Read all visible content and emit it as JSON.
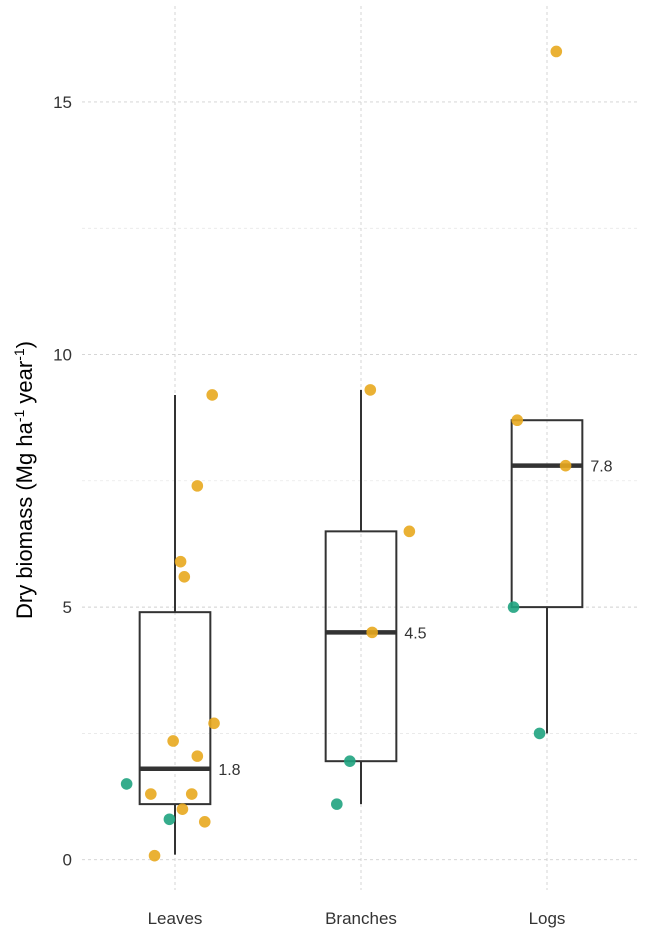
{
  "chart_data": {
    "type": "box",
    "ylabel_parts": [
      "Dry biomass (Mg ha",
      "-1",
      " year",
      "-1",
      ")"
    ],
    "ylim": [
      -0.6,
      16.9
    ],
    "y_ticks": [
      0,
      5,
      10,
      15
    ],
    "y_tick_labels": [
      "0",
      "5",
      "10",
      "15"
    ],
    "y_minor_ticks": [
      2.5,
      7.5,
      12.5
    ],
    "grid": true,
    "categories": [
      "Leaves",
      "Branches",
      "Logs"
    ],
    "colors": {
      "orange": "#E8A81E",
      "green": "#1FA37F",
      "box": "#333333",
      "grid": "#d0d0d0"
    },
    "boxes": [
      {
        "category": "Leaves",
        "whisker_low": 0.1,
        "q1": 1.1,
        "median": 1.8,
        "q3": 4.9,
        "whisker_high": 9.2,
        "median_label": "1.8"
      },
      {
        "category": "Branches",
        "whisker_low": 1.1,
        "q1": 1.95,
        "median": 4.5,
        "q3": 6.5,
        "whisker_high": 9.3,
        "median_label": "4.5"
      },
      {
        "category": "Logs",
        "whisker_low": 2.5,
        "q1": 5.0,
        "median": 7.8,
        "q3": 8.7,
        "whisker_high": 8.7,
        "median_label": "7.8"
      }
    ],
    "points": [
      {
        "category": "Leaves",
        "jitter": 0.2,
        "y": 9.2,
        "color": "orange"
      },
      {
        "category": "Leaves",
        "jitter": 0.12,
        "y": 7.4,
        "color": "orange"
      },
      {
        "category": "Leaves",
        "jitter": 0.03,
        "y": 5.9,
        "color": "orange"
      },
      {
        "category": "Leaves",
        "jitter": 0.05,
        "y": 5.6,
        "color": "orange"
      },
      {
        "category": "Leaves",
        "jitter": 0.21,
        "y": 2.7,
        "color": "orange"
      },
      {
        "category": "Leaves",
        "jitter": -0.01,
        "y": 2.35,
        "color": "orange"
      },
      {
        "category": "Leaves",
        "jitter": 0.12,
        "y": 2.05,
        "color": "orange"
      },
      {
        "category": "Leaves",
        "jitter": -0.26,
        "y": 1.5,
        "color": "green"
      },
      {
        "category": "Leaves",
        "jitter": -0.13,
        "y": 1.3,
        "color": "orange"
      },
      {
        "category": "Leaves",
        "jitter": 0.09,
        "y": 1.3,
        "color": "orange"
      },
      {
        "category": "Leaves",
        "jitter": 0.04,
        "y": 1.0,
        "color": "orange"
      },
      {
        "category": "Leaves",
        "jitter": -0.03,
        "y": 0.8,
        "color": "green"
      },
      {
        "category": "Leaves",
        "jitter": 0.16,
        "y": 0.75,
        "color": "orange"
      },
      {
        "category": "Leaves",
        "jitter": -0.11,
        "y": 0.08,
        "color": "orange"
      },
      {
        "category": "Branches",
        "jitter": 0.05,
        "y": 9.3,
        "color": "orange"
      },
      {
        "category": "Branches",
        "jitter": 0.26,
        "y": 6.5,
        "color": "orange"
      },
      {
        "category": "Branches",
        "jitter": 0.06,
        "y": 4.5,
        "color": "orange"
      },
      {
        "category": "Branches",
        "jitter": -0.06,
        "y": 1.95,
        "color": "green"
      },
      {
        "category": "Branches",
        "jitter": -0.13,
        "y": 1.1,
        "color": "green"
      },
      {
        "category": "Logs",
        "jitter": 0.05,
        "y": 16.0,
        "color": "orange"
      },
      {
        "category": "Logs",
        "jitter": -0.16,
        "y": 8.7,
        "color": "orange"
      },
      {
        "category": "Logs",
        "jitter": 0.1,
        "y": 7.8,
        "color": "orange"
      },
      {
        "category": "Logs",
        "jitter": -0.18,
        "y": 5.0,
        "color": "green"
      },
      {
        "category": "Logs",
        "jitter": -0.04,
        "y": 2.5,
        "color": "green"
      }
    ]
  }
}
